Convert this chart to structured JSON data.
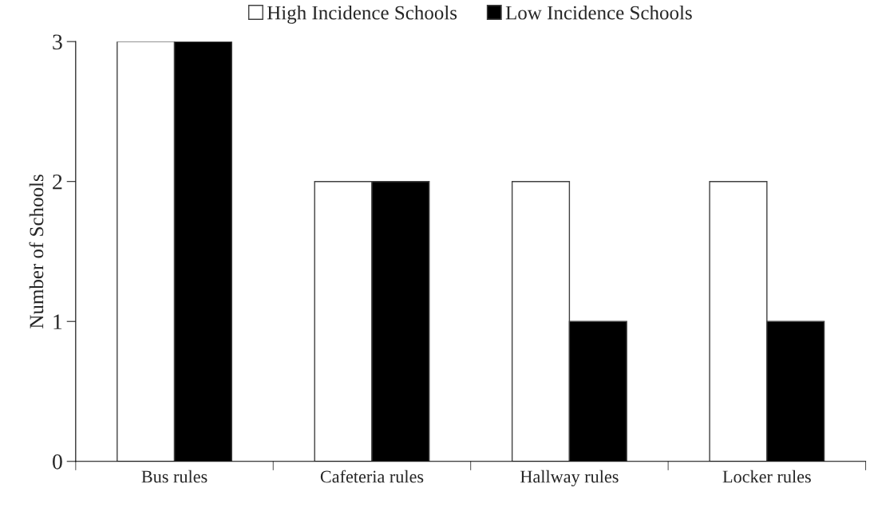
{
  "chart_data": {
    "type": "bar",
    "ylabel": "Number of Schools",
    "categories": [
      "Bus rules",
      "Cafeteria rules",
      "Hallway rules",
      "Locker rules"
    ],
    "series": [
      {
        "name": "High Incidence Schools",
        "color": "#ffffff",
        "values": [
          3,
          2,
          2,
          2
        ]
      },
      {
        "name": "Low Incidence Schools",
        "color": "#000000",
        "values": [
          3,
          2,
          1,
          1
        ]
      }
    ],
    "ylim": [
      0,
      3
    ],
    "yticks": [
      0,
      1,
      2,
      3
    ],
    "grid": false,
    "legend": "top"
  }
}
